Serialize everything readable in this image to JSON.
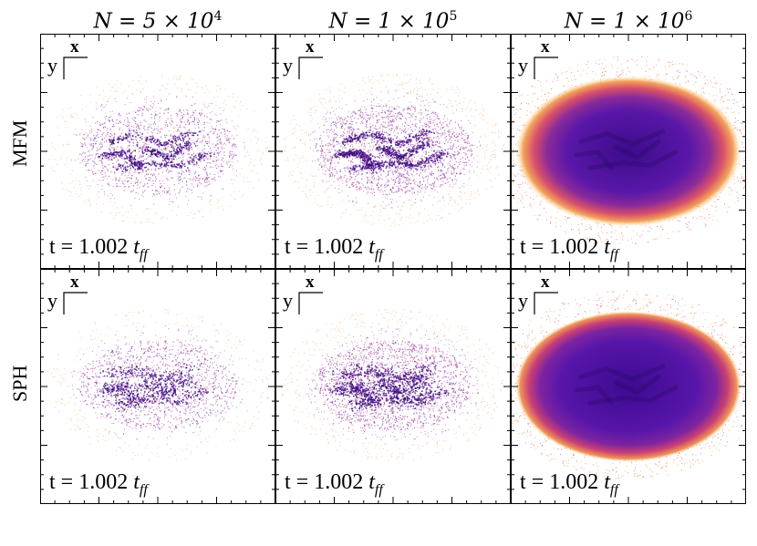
{
  "chart_data": {
    "type": "scatter",
    "columns": [
      {
        "label_base": "N = 5 × 10",
        "exponent": "4",
        "particles": 50000
      },
      {
        "label_base": "N = 1 × 10",
        "exponent": "5",
        "particles": 100000
      },
      {
        "label_base": "N = 1 × 10",
        "exponent": "6",
        "particles": 1000000
      }
    ],
    "rows": [
      {
        "label": "MFM"
      },
      {
        "label": "SPH"
      }
    ],
    "axis_labels": {
      "x": "x",
      "y": "y"
    },
    "time_label": {
      "prefix": "t = 1.002 ",
      "unit": "t",
      "subscript": "ff"
    },
    "colormap": [
      "#fde5a8",
      "#f79a4d",
      "#e0465f",
      "#a7267e",
      "#6a18a6",
      "#2c0a6e"
    ]
  }
}
